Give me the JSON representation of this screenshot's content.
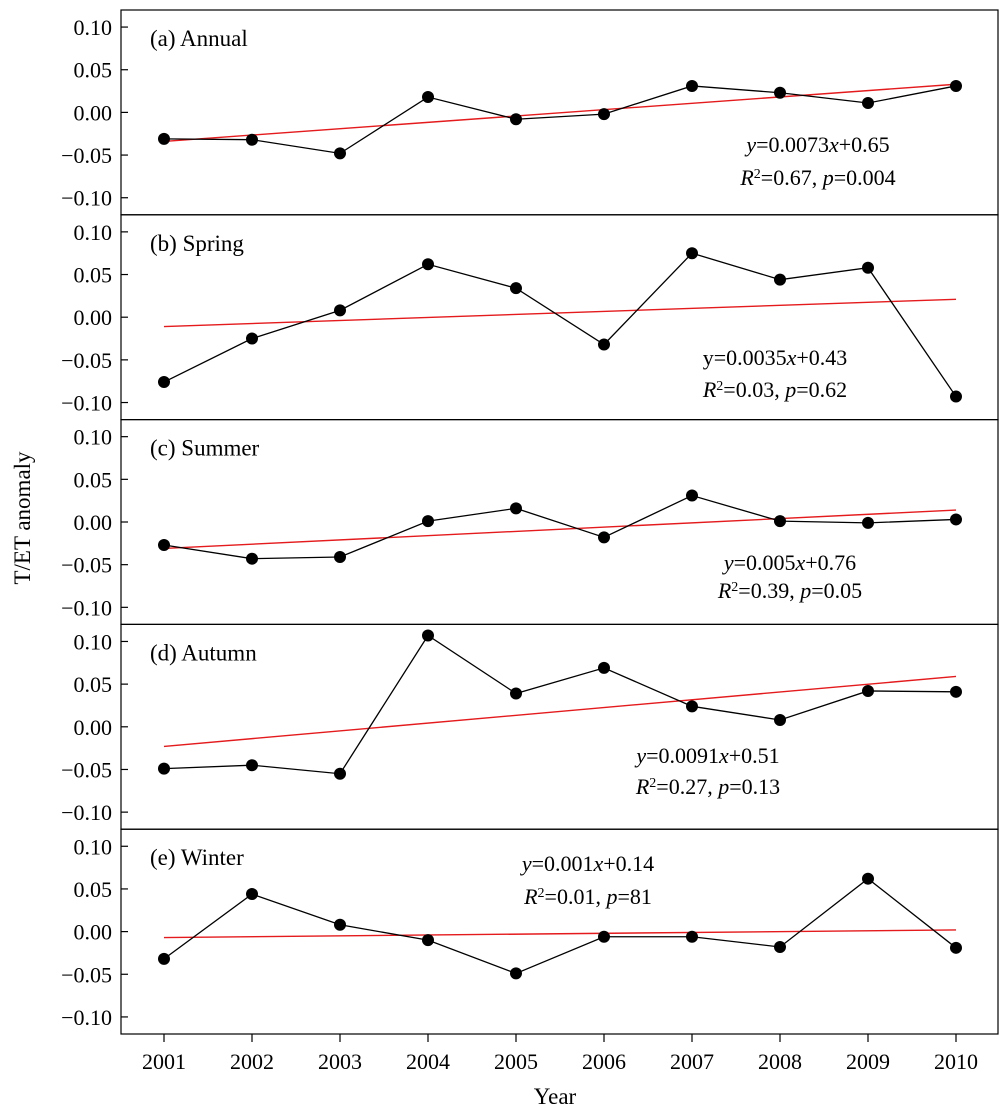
{
  "chart_data": {
    "type": "line",
    "layout": "stacked-panels",
    "x": [
      2001,
      2002,
      2003,
      2004,
      2005,
      2006,
      2007,
      2008,
      2009,
      2010
    ],
    "xlabel": "Year",
    "ylabel": "T/ET anomaly",
    "ylim": [
      -0.12,
      0.12
    ],
    "yticks": [
      -0.1,
      -0.05,
      0.0,
      0.05,
      0.1
    ],
    "ytick_labels": [
      "−0.10",
      "−0.05",
      "0.00",
      "0.05",
      "0.10"
    ],
    "colors": {
      "series": "#000000",
      "trend": "#e41a1c"
    },
    "panels": [
      {
        "label": "(a) Annual",
        "values": [
          -0.031,
          -0.032,
          -0.048,
          0.018,
          -0.008,
          -0.002,
          0.031,
          0.023,
          0.011,
          0.031
        ],
        "trend": [
          -0.034,
          0.033
        ],
        "equation": {
          "prefix": "y",
          "body": "=0.0073",
          "var": "x",
          "rest": "+0.65"
        },
        "stats": {
          "r": "R",
          "r2": "=0.67, ",
          "p": "p",
          "pval": "=0.004"
        }
      },
      {
        "label": "(b) Spring",
        "values": [
          -0.076,
          -0.025,
          0.008,
          0.062,
          0.034,
          -0.032,
          0.075,
          0.044,
          0.058,
          -0.093
        ],
        "trend": [
          -0.011,
          0.021
        ],
        "equation": {
          "prefix": "y",
          "body": "=0.0035",
          "var": "x",
          "rest": "+0.43"
        },
        "stats": {
          "r": "R",
          "r2": "=0.03, ",
          "p": "p",
          "pval": "=0.62"
        }
      },
      {
        "label": "(c) Summer",
        "values": [
          -0.027,
          -0.043,
          -0.041,
          0.001,
          0.016,
          -0.018,
          0.031,
          0.001,
          -0.001,
          0.003
        ],
        "trend": [
          -0.031,
          0.014
        ],
        "equation": {
          "prefix": "y",
          "body": "=0.005",
          "var": "x",
          "rest": "+0.76"
        },
        "stats": {
          "r": "R",
          "r2": "=0.39, ",
          "p": "p",
          "pval": "=0.05"
        }
      },
      {
        "label": "(d) Autumn",
        "values": [
          -0.049,
          -0.045,
          -0.055,
          0.107,
          0.039,
          0.069,
          0.024,
          0.008,
          0.042,
          0.041
        ],
        "trend": [
          -0.023,
          0.059
        ],
        "equation": {
          "prefix": "y",
          "body": "=0.0091",
          "var": "x",
          "rest": "+0.51"
        },
        "stats": {
          "r": "R",
          "r2": "=0.27, ",
          "p": "p",
          "pval": "=0.13"
        }
      },
      {
        "label": "(e) Winter",
        "values": [
          -0.032,
          0.044,
          0.008,
          -0.01,
          -0.049,
          -0.006,
          -0.006,
          -0.018,
          0.062,
          -0.019
        ],
        "trend": [
          -0.007,
          0.002
        ],
        "equation": {
          "prefix": "y",
          "body": "=0.001",
          "var": "x",
          "rest": "+0.14"
        },
        "stats": {
          "r": "R",
          "r2": "=0.01, ",
          "p": "p",
          "pval": "=81"
        }
      }
    ]
  }
}
